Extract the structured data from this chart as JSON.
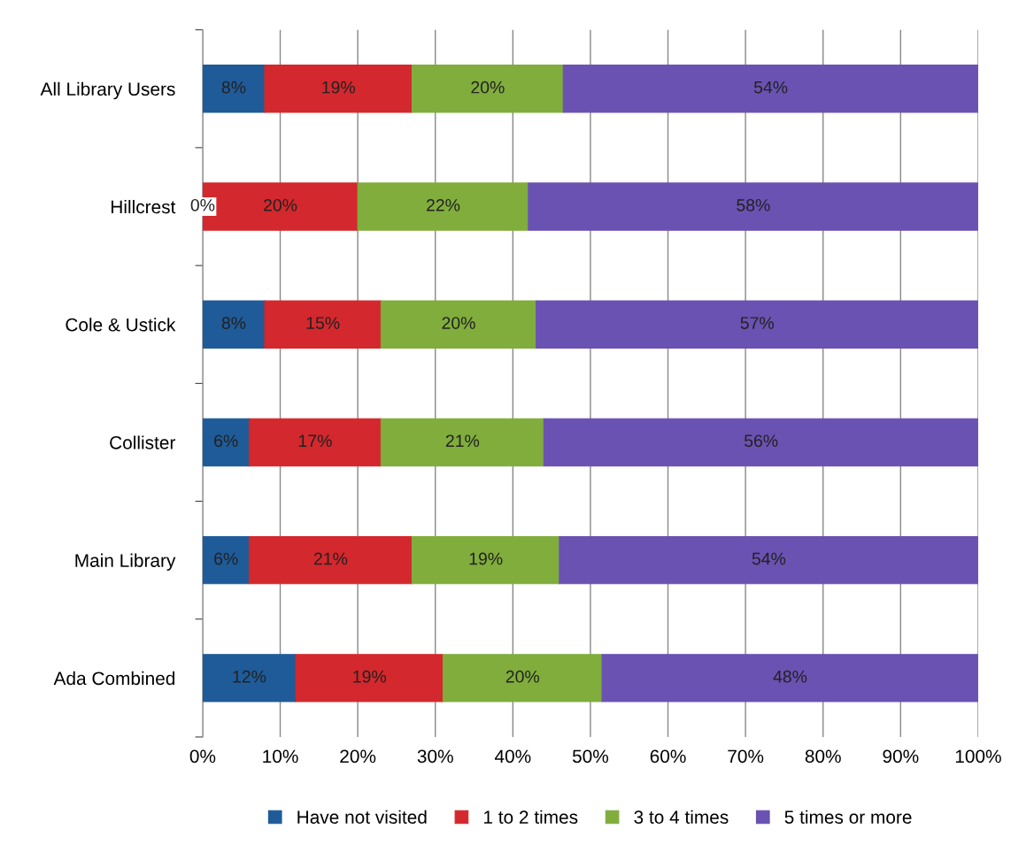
{
  "chart_data": {
    "type": "bar",
    "orientation": "horizontal",
    "stacked": true,
    "categories": [
      "All Library Users",
      "Hillcrest",
      "Cole & Ustick",
      "Collister",
      "Main Library",
      "Ada Combined"
    ],
    "series": [
      {
        "name": "Have not visited",
        "color": "#1f5b98",
        "values": [
          8,
          0,
          8,
          6,
          6,
          12
        ],
        "value_labels": [
          "8%",
          "0%",
          "8%",
          "6%",
          "6%",
          "12%"
        ]
      },
      {
        "name": "1 to 2 times",
        "color": "#d3282d",
        "values": [
          19,
          20,
          15,
          17,
          21,
          19
        ],
        "value_labels": [
          "19%",
          "20%",
          "15%",
          "17%",
          "21%",
          "19%"
        ]
      },
      {
        "name": "3 to 4 times",
        "color": "#80ad3c",
        "values": [
          19.5,
          22,
          20,
          21,
          19,
          20.5
        ],
        "value_labels": [
          "20%",
          "22%",
          "20%",
          "21%",
          "19%",
          "20%"
        ]
      },
      {
        "name": "5 times or more",
        "color": "#6a52b2",
        "values": [
          53.5,
          58,
          57,
          56,
          54,
          48.5
        ],
        "value_labels": [
          "54%",
          "58%",
          "57%",
          "56%",
          "54%",
          "48%"
        ]
      }
    ],
    "xlim": [
      0,
      100
    ],
    "xticks": [
      {
        "value": 0,
        "label": "0%"
      },
      {
        "value": 10,
        "label": "10%"
      },
      {
        "value": 20,
        "label": "20%"
      },
      {
        "value": 30,
        "label": "30%"
      },
      {
        "value": 40,
        "label": "40%"
      },
      {
        "value": 50,
        "label": "50%"
      },
      {
        "value": 60,
        "label": "60%"
      },
      {
        "value": 70,
        "label": "70%"
      },
      {
        "value": 80,
        "label": "80%"
      },
      {
        "value": 90,
        "label": "90%"
      },
      {
        "value": 100,
        "label": "100%"
      }
    ],
    "grid": "x",
    "legend": "bottom"
  }
}
